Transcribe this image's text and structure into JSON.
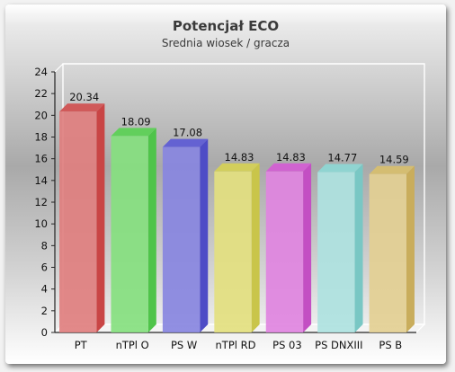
{
  "chart_data": {
    "type": "bar",
    "title": "Potencjał ECO",
    "subtitle": "Srednia wiosek / gracza",
    "xlabel": "",
    "ylabel": "",
    "ylim": [
      0,
      24
    ],
    "yticks": [
      0,
      2,
      4,
      6,
      8,
      10,
      12,
      14,
      16,
      18,
      20,
      22,
      24
    ],
    "grid": false,
    "legend": "none",
    "categories": [
      "PT",
      "nTPl O",
      "PS W",
      "nTPl RD",
      "PS 03",
      "PS DNXIII",
      "PS B"
    ],
    "values": [
      20.34,
      18.09,
      17.08,
      14.83,
      14.83,
      14.77,
      14.59
    ],
    "value_labels": [
      "20.34",
      "18.09",
      "17.08",
      "14.83",
      "14.83",
      "14.77",
      "14.59"
    ],
    "colors": [
      "#e07f7f",
      "#86e07f",
      "#8886e0",
      "#e3e07f",
      "#e084e0",
      "#aee2e0",
      "#e3cf93"
    ],
    "side_colors": [
      "#c94545",
      "#4fc44a",
      "#4e4cc6",
      "#c9c54a",
      "#c34fc3",
      "#79c7c4",
      "#c9ad5c"
    ],
    "top_colors": [
      "#d05a5a",
      "#62cf5c",
      "#6462d2",
      "#d2ce5c",
      "#d063d0",
      "#90d4d1",
      "#d4bd72"
    ]
  }
}
